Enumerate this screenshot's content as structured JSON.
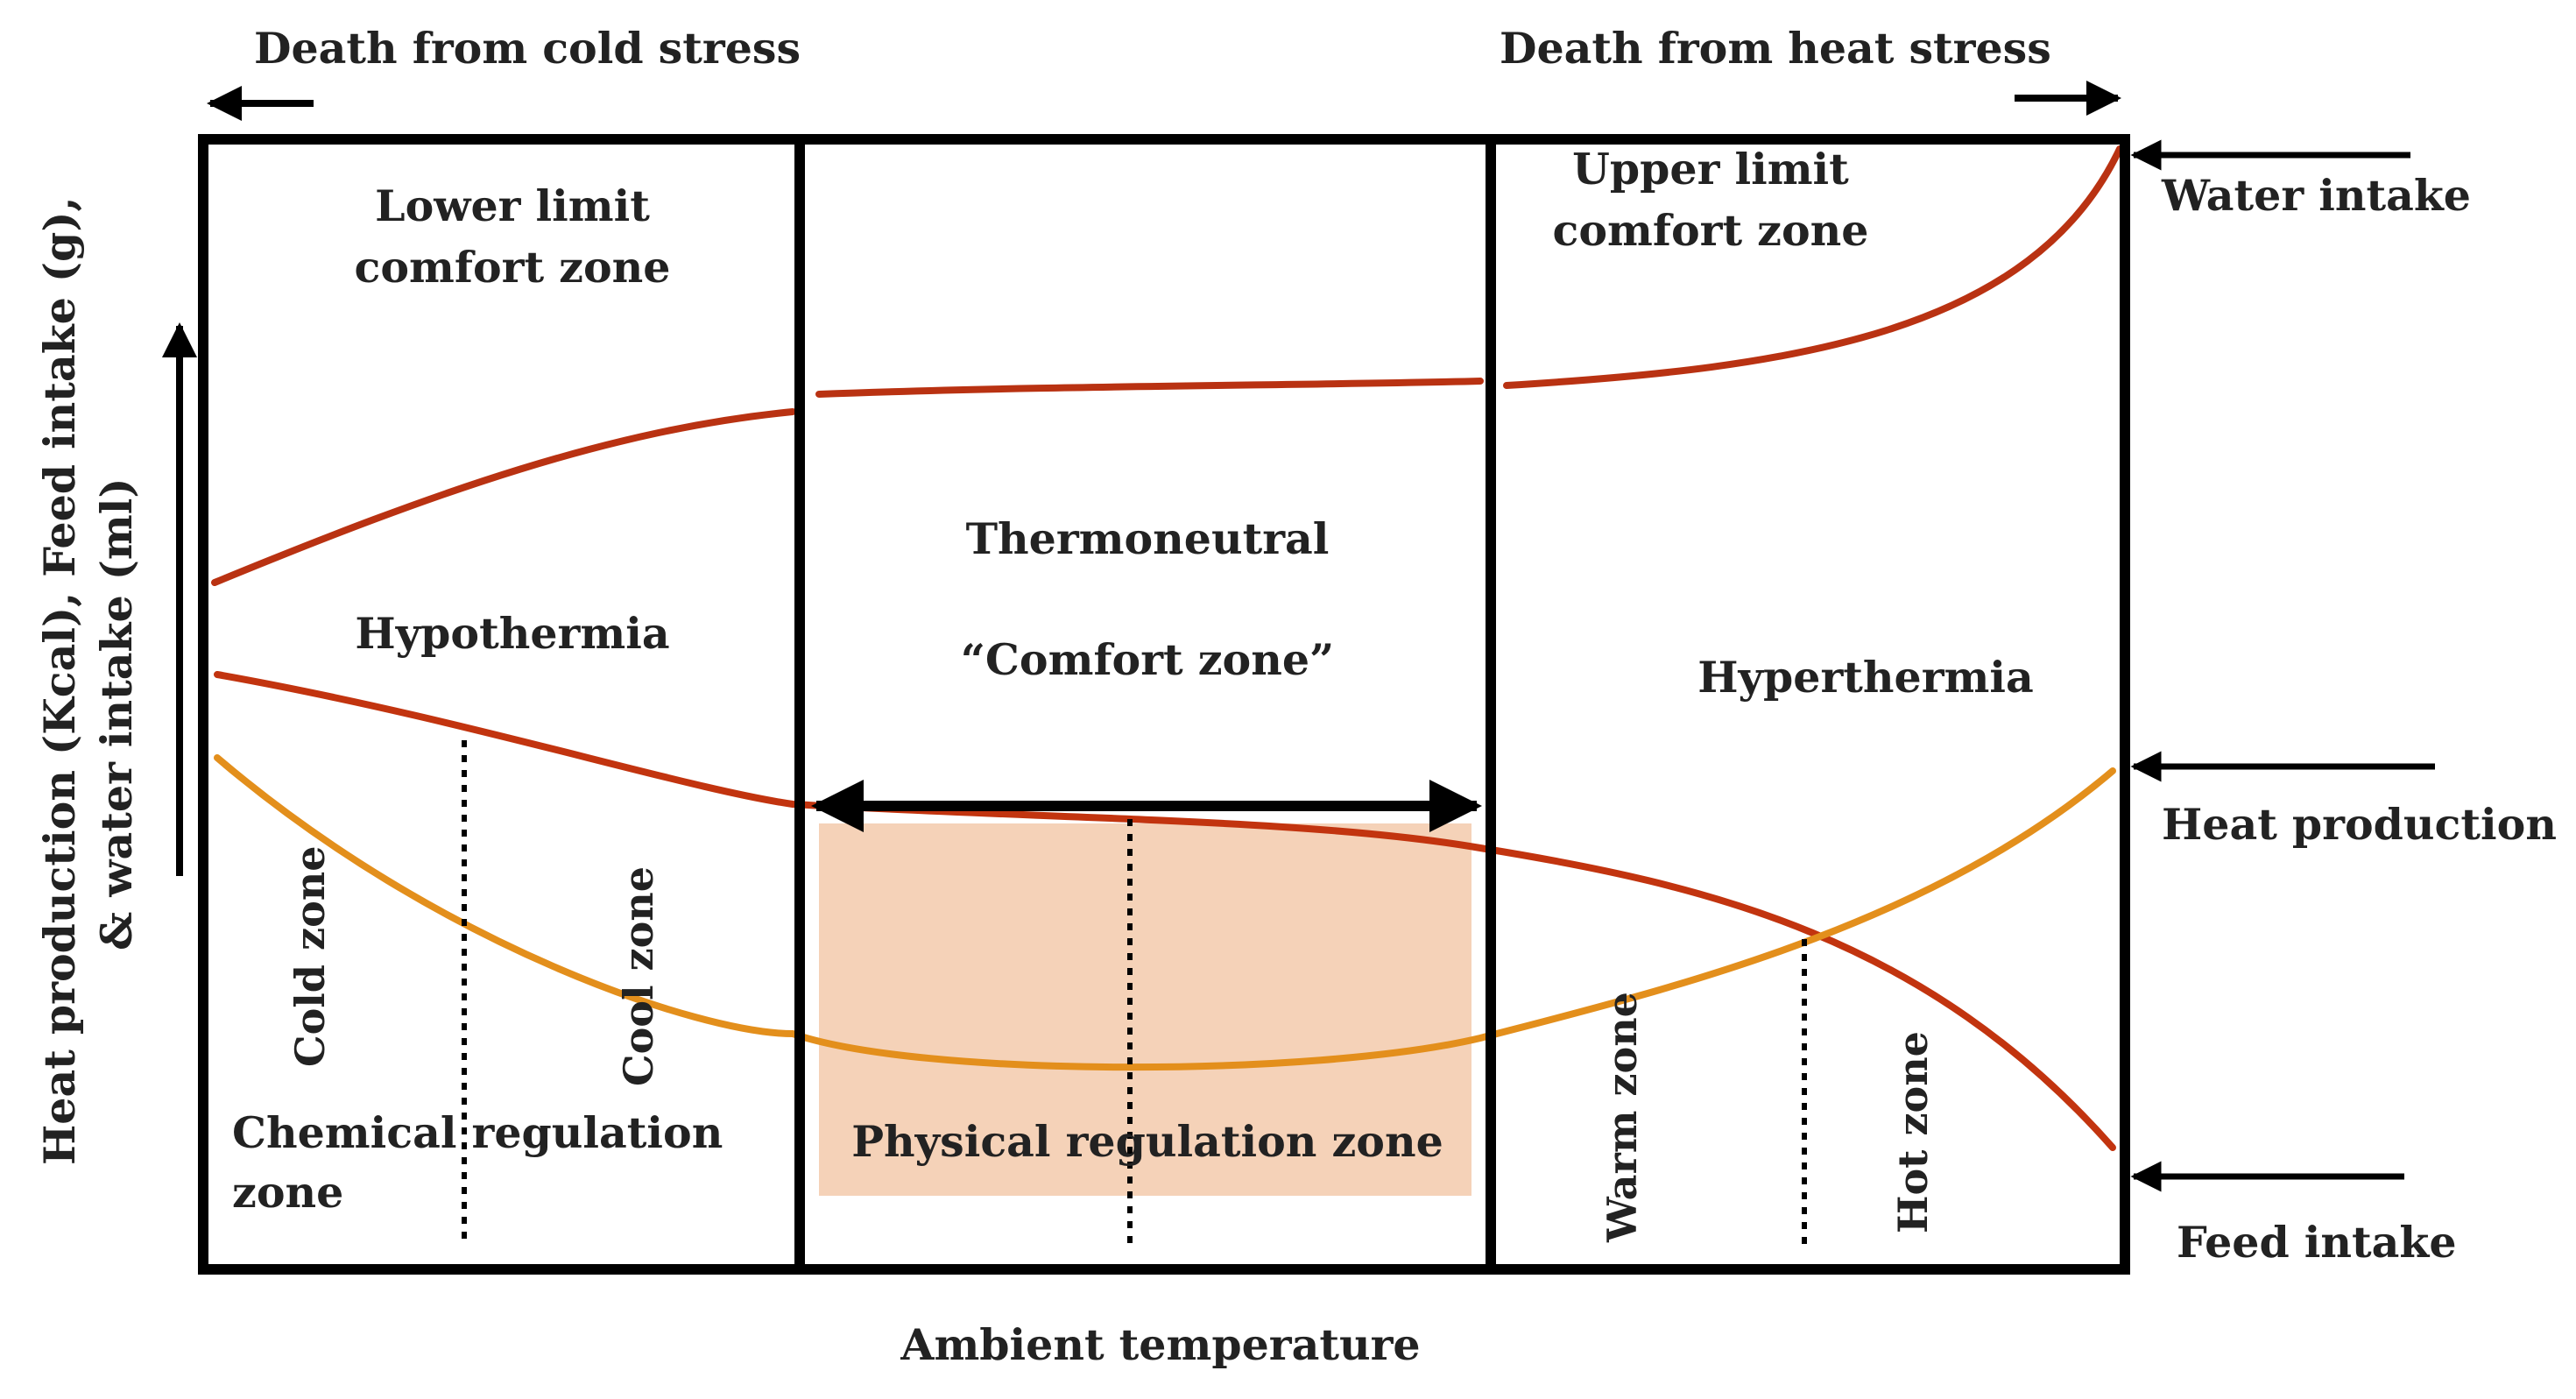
{
  "header": {
    "death_cold": "Death from cold stress",
    "death_heat": "Death from heat stress"
  },
  "axes": {
    "y_label": "Heat production (Kcal), Feed intake (g),",
    "y_label_2": "& water intake (ml)",
    "x_label": "Ambient temperature"
  },
  "regions": {
    "lower_limit_1": "Lower limit",
    "lower_limit_2": "comfort  zone",
    "upper_limit_1": "Upper limit",
    "upper_limit_2": "comfort  zone",
    "thermoneutral": "Thermoneutral",
    "comfort_zone": "“Comfort zone”",
    "hypothermia": "Hypothermia",
    "hyperthermia": "Hyperthermia",
    "chemical_1": "Chemical regulation",
    "chemical_2": "zone",
    "physical": "Physical regulation zone"
  },
  "zones": {
    "cold": "Cold zone",
    "cool": "Cool zone",
    "warm": "Warm zone",
    "hot": "Hot zone"
  },
  "curves": {
    "water": "Water intake",
    "heat": "Heat production",
    "feed": "Feed intake"
  },
  "colors": {
    "frame": "#000000",
    "water_curve": "#b93212",
    "heat_curve": "#e38f1c",
    "feed_curve": "#c2340f",
    "comfort_fill": "#f5d2b8"
  }
}
